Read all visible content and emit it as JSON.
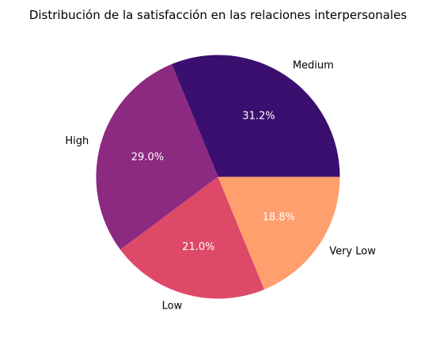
{
  "chart_data": {
    "type": "pie",
    "title": "Distribución de la satisfacción en las relaciones interpersonales",
    "categories": [
      "Medium",
      "High",
      "Low",
      "Very Low"
    ],
    "values": [
      31.2,
      29.0,
      21.0,
      18.8
    ],
    "percent_labels": [
      "31.2%",
      "29.0%",
      "21.0%",
      "18.8%"
    ],
    "colors": [
      "#3b0f6f",
      "#8c2981",
      "#de4968",
      "#fe9f6d"
    ],
    "start_angle_deg": 0,
    "direction": "counterclockwise",
    "legend": "none"
  }
}
